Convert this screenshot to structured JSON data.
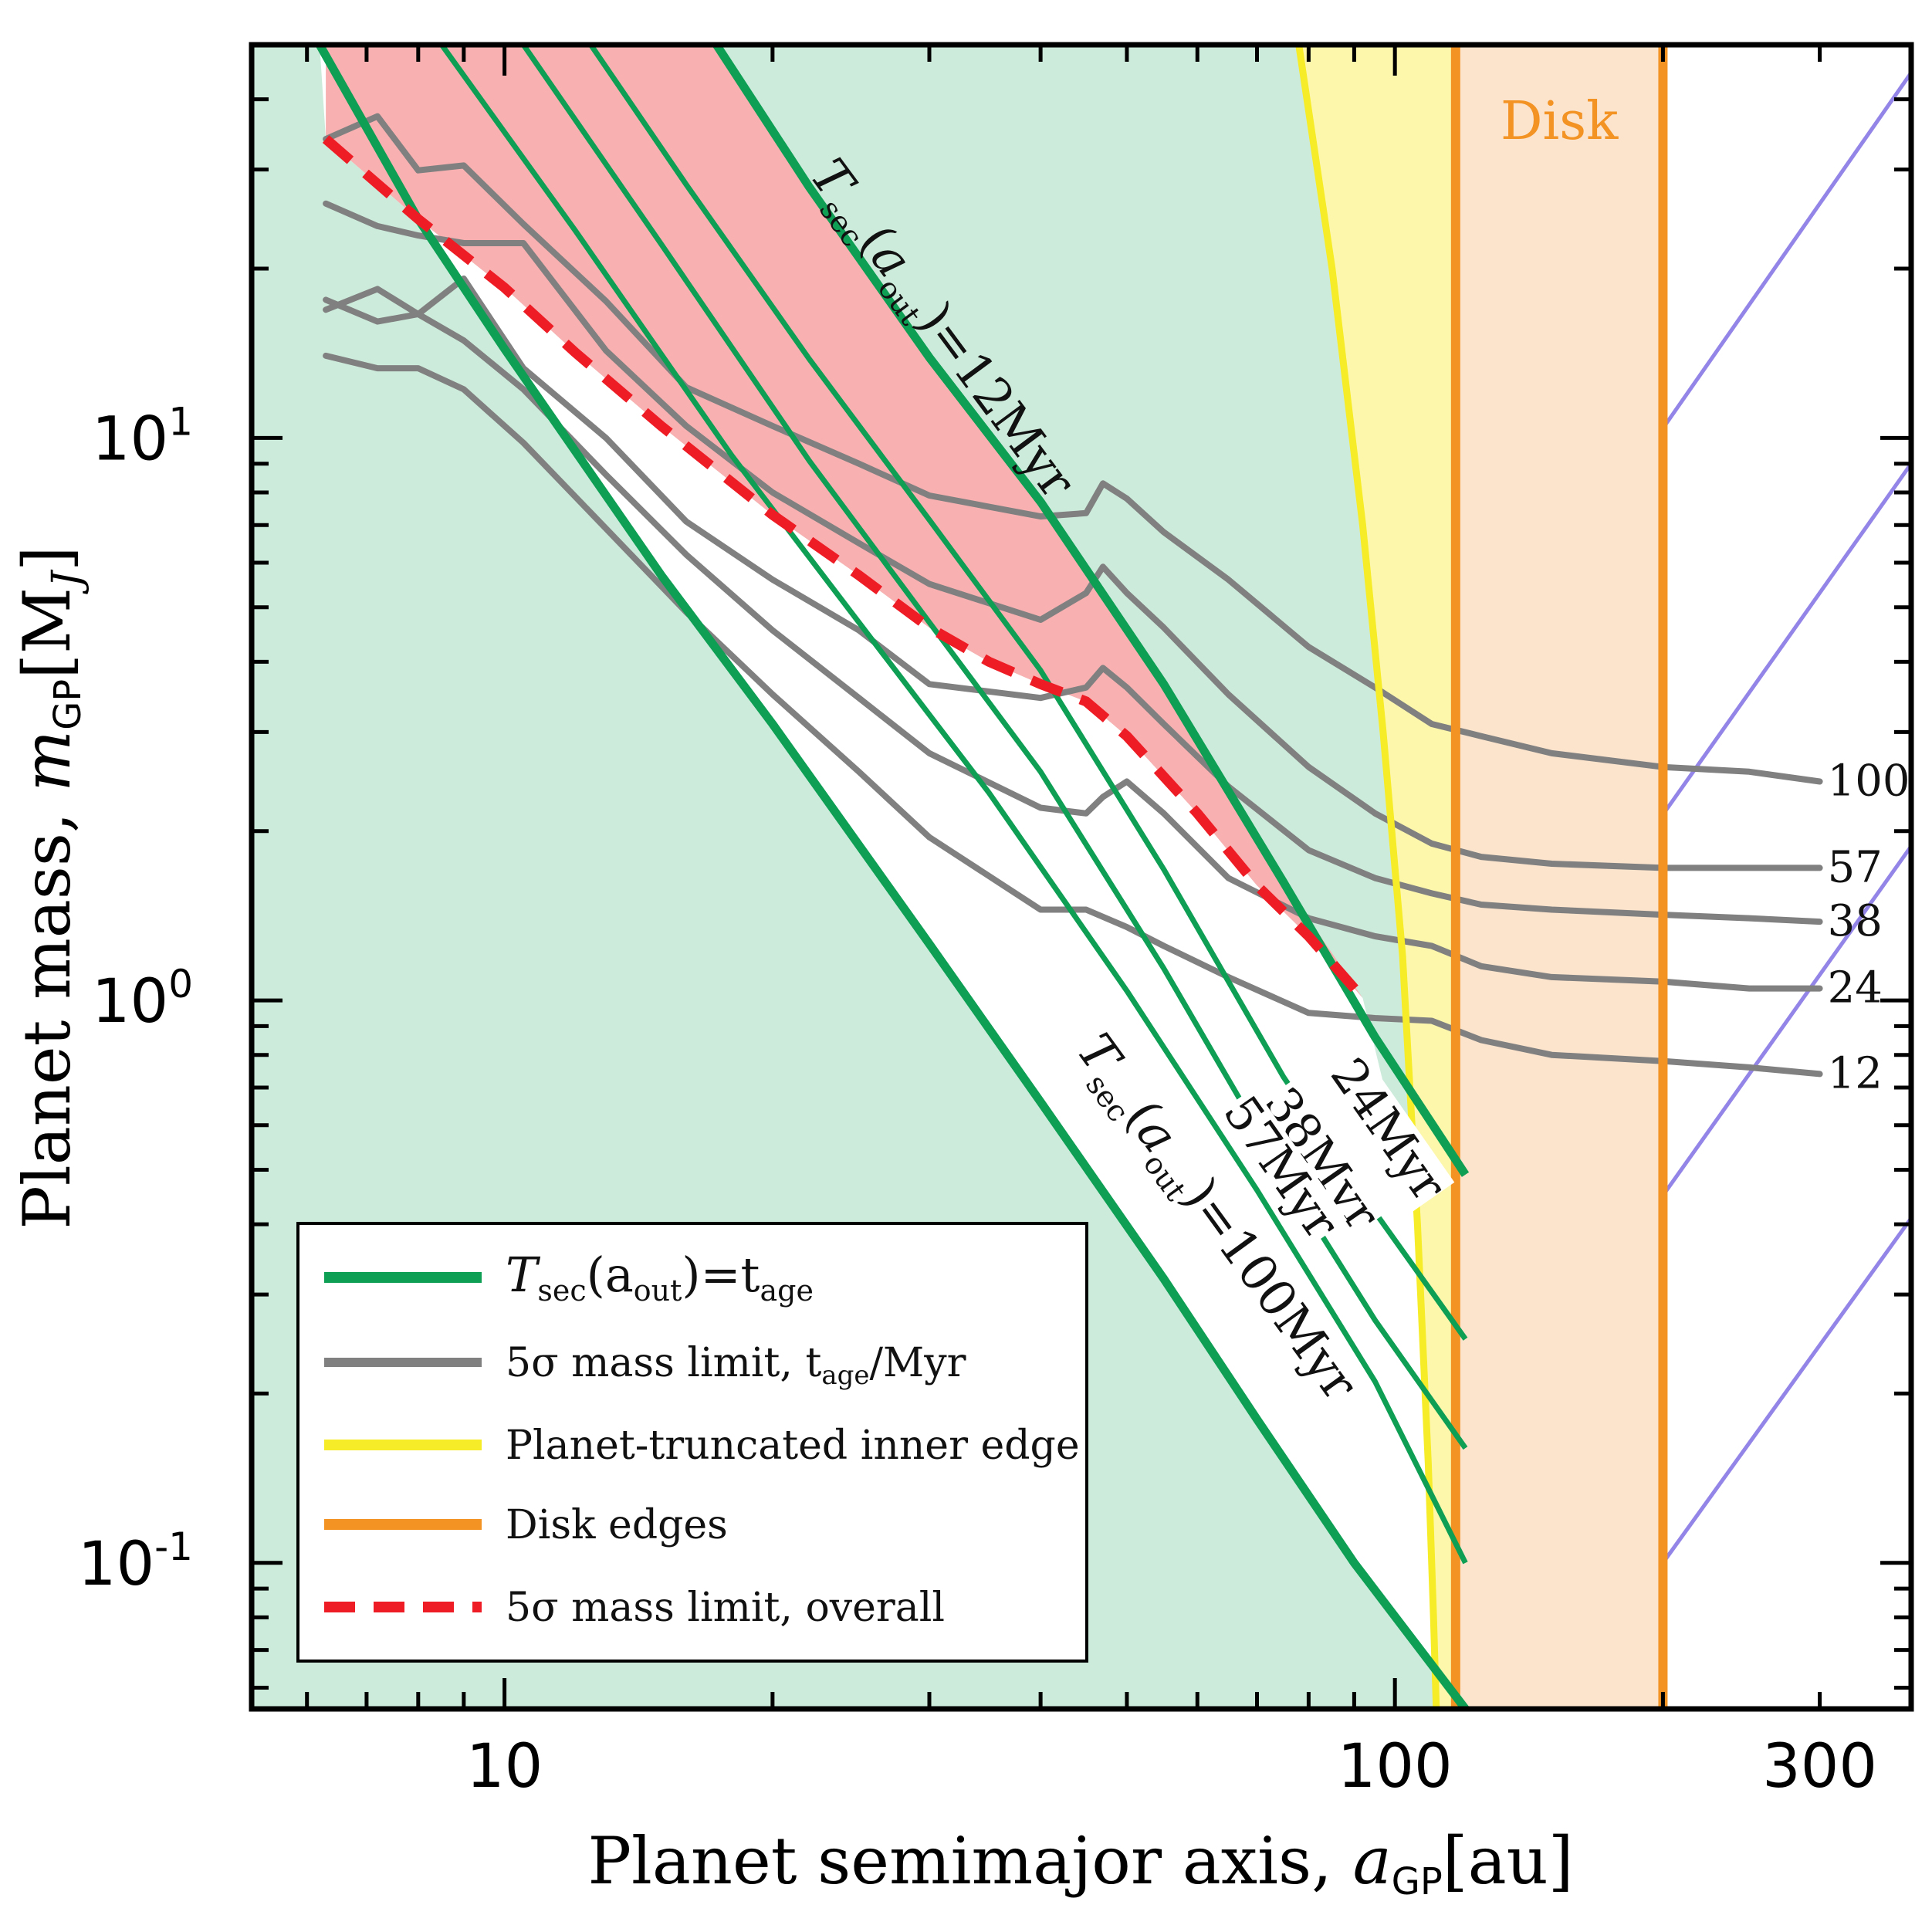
{
  "chart_data": {
    "type": "line",
    "xscale": "log",
    "yscale": "log",
    "xlim": [
      5.2,
      380
    ],
    "ylim": [
      0.055,
      50
    ],
    "xlabel": "Planet semimajor axis, a_GP[au]",
    "ylabel": "Planet mass, m_GP[M_J]",
    "xlabel_parts": {
      "main": "Planet semimajor axis, ",
      "sym": "a",
      "sub": "GP",
      "unit": "[au]"
    },
    "ylabel_parts": {
      "main": "Planet mass, ",
      "sym": "m",
      "sub": "GP",
      "unit": "[M",
      "unit_sub": "J",
      "unit_end": "]"
    },
    "x_ticks": [
      {
        "value": 10,
        "label": "10"
      },
      {
        "value": 100,
        "label": "100"
      },
      {
        "value": 300,
        "label": "300"
      }
    ],
    "y_ticks": [
      {
        "value": 0.1,
        "base": "10",
        "exp": "-1"
      },
      {
        "value": 1,
        "base": "10",
        "exp": "0"
      },
      {
        "value": 10,
        "base": "10",
        "exp": "1"
      }
    ],
    "grid": false,
    "colors": {
      "green": "#0e9f55",
      "green_fill": "#cdebdb",
      "gray": "#808080",
      "yellow": "#f6ec27",
      "yellow_fill": "#fdf7ac",
      "orange": "#f39324",
      "orange_fill": "#fbe3cc",
      "red": "#ee1c25",
      "red_fill": "#f8b0b0",
      "purple": "#9385e8"
    },
    "disk": {
      "inner_au": 117,
      "outer_au": 200,
      "label": "Disk"
    },
    "truncation_curve": {
      "name": "Planet-truncated inner edge",
      "x": [
        78,
        85,
        92,
        97,
        102,
        106,
        109,
        110.5,
        111.3
      ],
      "y": [
        50,
        20,
        7,
        3,
        1.2,
        0.4,
        0.15,
        0.08,
        0.055
      ]
    },
    "tsec_curves": [
      {
        "age_myr": 12,
        "label": "T_sec(a_out)=12Myr",
        "x": [
          17.3,
          22,
          30,
          40,
          55,
          75,
          95,
          120
        ],
        "y": [
          50,
          27.9,
          13.9,
          7.7,
          3.65,
          1.62,
          0.86,
          0.49
        ]
      },
      {
        "age_myr": 24,
        "x": [
          12.5,
          16,
          22,
          30,
          40,
          55,
          75,
          95,
          120
        ],
        "y": [
          50,
          28.2,
          13.8,
          7.15,
          3.86,
          1.71,
          0.73,
          0.42,
          0.25
        ]
      },
      {
        "age_myr": 38,
        "x": [
          10.5,
          15,
          22,
          30,
          40,
          55,
          75,
          95,
          120
        ],
        "y": [
          50,
          22.1,
          9.1,
          4.7,
          2.55,
          1.14,
          0.49,
          0.27,
          0.16
        ]
      },
      {
        "age_myr": 57,
        "x": [
          8.5,
          12,
          18,
          25,
          35,
          50,
          70,
          95,
          120
        ],
        "y": [
          50,
          23.4,
          9.3,
          4.7,
          2.34,
          1.04,
          0.46,
          0.21,
          0.1
        ]
      },
      {
        "age_myr": 100,
        "label": "T_sec(a_out)=100Myr",
        "x": [
          6.2,
          8,
          10,
          15,
          20,
          30,
          40,
          55,
          70,
          90,
          120
        ],
        "y": [
          50,
          24.5,
          14.4,
          5.7,
          3.1,
          1.26,
          0.66,
          0.32,
          0.18,
          0.1,
          0.055
        ]
      }
    ],
    "tsec_inline_labels": [
      {
        "text": "24Myr",
        "age_myr": 24
      },
      {
        "text": "38Myr",
        "age_myr": 38
      },
      {
        "text": "57Myr",
        "age_myr": 57
      }
    ],
    "mass_limits": [
      {
        "age_myr": 100,
        "label": "100",
        "x": [
          6.3,
          7.2,
          8.0,
          9.0,
          10.5,
          13,
          16,
          20,
          25,
          30,
          40,
          45,
          47,
          50,
          55,
          65,
          80,
          95,
          110,
          125,
          150,
          200,
          250,
          300
        ],
        "y": [
          34,
          37.3,
          29.9,
          30.5,
          24.0,
          17.5,
          12.3,
          10.5,
          9.0,
          7.9,
          7.25,
          7.35,
          8.3,
          7.8,
          6.8,
          5.6,
          4.25,
          3.6,
          3.1,
          2.95,
          2.75,
          2.6,
          2.55,
          2.45
        ]
      },
      {
        "age_myr": 57,
        "label": "57",
        "x": [
          6.3,
          7.2,
          8.0,
          9.0,
          10.5,
          13,
          16,
          20,
          25,
          30,
          40,
          45,
          47,
          50,
          55,
          65,
          80,
          95,
          110,
          125,
          150,
          200,
          250,
          300
        ],
        "y": [
          26.1,
          23.8,
          22.9,
          22.2,
          22.2,
          14.3,
          10.5,
          8.0,
          6.5,
          5.5,
          4.75,
          5.3,
          5.9,
          5.3,
          4.6,
          3.5,
          2.6,
          2.15,
          1.9,
          1.8,
          1.75,
          1.72,
          1.72,
          1.72
        ]
      },
      {
        "age_myr": 38,
        "label": "38",
        "x": [
          6.3,
          7.2,
          8.0,
          9.0,
          10.5,
          13,
          16,
          20,
          25,
          30,
          40,
          45,
          47,
          50,
          55,
          65,
          80,
          95,
          110,
          125,
          150,
          200,
          250,
          300
        ],
        "y": [
          17.6,
          16.1,
          16.6,
          19.2,
          13.3,
          10.0,
          7.1,
          5.6,
          4.55,
          3.65,
          3.45,
          3.6,
          3.9,
          3.6,
          3.1,
          2.4,
          1.85,
          1.65,
          1.55,
          1.48,
          1.45,
          1.42,
          1.4,
          1.38
        ]
      },
      {
        "age_myr": 24,
        "label": "24",
        "x": [
          6.3,
          7.2,
          8.0,
          9.0,
          10.5,
          13,
          16,
          20,
          25,
          30,
          40,
          45,
          47,
          50,
          55,
          65,
          80,
          95,
          110,
          125,
          150,
          200,
          250,
          300
        ],
        "y": [
          16.9,
          18.4,
          16.6,
          14.9,
          12.2,
          8.6,
          6.2,
          4.55,
          3.45,
          2.75,
          2.2,
          2.15,
          2.3,
          2.45,
          2.15,
          1.65,
          1.4,
          1.3,
          1.25,
          1.15,
          1.1,
          1.08,
          1.05,
          1.05
        ]
      },
      {
        "age_myr": 12,
        "label": "12",
        "x": [
          6.3,
          7.2,
          8.0,
          9.0,
          10.5,
          13,
          16,
          20,
          25,
          30,
          40,
          45,
          50,
          55,
          65,
          80,
          95,
          110,
          125,
          150,
          200,
          250,
          300
        ],
        "y": [
          14.0,
          13.3,
          13.3,
          12.2,
          9.8,
          6.9,
          4.9,
          3.5,
          2.55,
          1.95,
          1.45,
          1.45,
          1.35,
          1.25,
          1.1,
          0.95,
          0.93,
          0.92,
          0.85,
          0.8,
          0.78,
          0.76,
          0.74
        ]
      }
    ],
    "overall_limit": {
      "name": "5σ mass limit, overall",
      "x": [
        6.3,
        8,
        10,
        12,
        15,
        20,
        25,
        30,
        35,
        40,
        45,
        50,
        60,
        70,
        80,
        92
      ],
      "y": [
        34,
        24.5,
        18.5,
        14.2,
        10.5,
        7.3,
        5.7,
        4.6,
        4.0,
        3.65,
        3.4,
        2.95,
        2.15,
        1.6,
        1.3,
        1.01
      ]
    },
    "purple_lines": [
      {
        "x": [
          200,
          380
        ],
        "y": [
          10.4,
          44.6
        ]
      },
      {
        "x": [
          200,
          380
        ],
        "y": [
          2.14,
          9.0
        ]
      },
      {
        "x": [
          200,
          380
        ],
        "y": [
          0.45,
          1.88
        ]
      },
      {
        "x": [
          200,
          380
        ],
        "y": [
          0.1,
          0.41
        ]
      }
    ],
    "legend": {
      "position": "bottom-left",
      "items": [
        {
          "key": "tsec",
          "label_main": "T",
          "label_sub": "sec",
          "label_rest": "(a",
          "label_sub2": "out",
          "label_rest2": ")=t",
          "label_sub3": "age"
        },
        {
          "key": "mass_limit",
          "label_a": "5σ mass limit, t",
          "label_sub": "age",
          "label_b": "/Myr"
        },
        {
          "key": "truncation",
          "label": "Planet-truncated inner edge"
        },
        {
          "key": "disk_edges",
          "label": "Disk edges"
        },
        {
          "key": "overall",
          "label": "5σ mass limit, overall"
        }
      ]
    }
  }
}
